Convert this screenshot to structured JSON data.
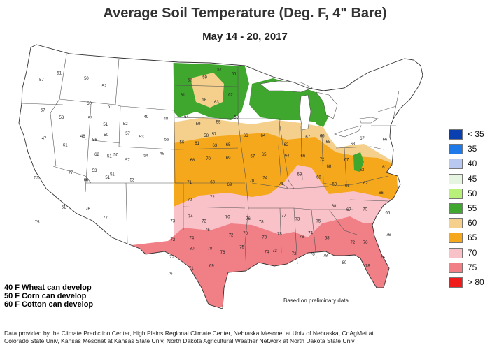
{
  "title": "Average Soil Temperature (Deg. F, 4\" Bare)",
  "subtitle": "May 14 - 20, 2017",
  "legend": {
    "items": [
      {
        "label": "< 35",
        "color": "#0a3fb0"
      },
      {
        "label": "35",
        "color": "#1e7ae8"
      },
      {
        "label": "40",
        "color": "#b8c8f0"
      },
      {
        "label": "45",
        "color": "#e6f5e0"
      },
      {
        "label": "50",
        "color": "#b8f07a"
      },
      {
        "label": "55",
        "color": "#3fa62e"
      },
      {
        "label": "60",
        "color": "#f5d08c"
      },
      {
        "label": "65",
        "color": "#f5a81c"
      },
      {
        "label": "70",
        "color": "#f9c2c8"
      },
      {
        "label": "75",
        "color": "#f07f86"
      },
      {
        "label": "> 80",
        "color": "#f01c1c"
      }
    ]
  },
  "notes": [
    "40 F Wheat can develop",
    "50 F Corn can develop",
    "60 F Cotton can develop"
  ],
  "prelim_note": "Based on preliminary data.",
  "credits": [
    "Data provided by the Climate Prediction Center, High Plains Regional Climate Center, Nebraska Mesonet at Univ of Nebraska, CoAgMet at",
    "Colorado State Univ, Kansas Mesonet at Kansas State Univ, North Dakota Agricultural Weather Network at North Dakota State Univ"
  ],
  "stations": {
    "west": [
      "57",
      "51",
      "50",
      "52",
      "57",
      "53",
      "50",
      "51",
      "47",
      "61",
      "46",
      "50",
      "53",
      "77",
      "66",
      "51",
      "75",
      "51",
      "76",
      "77"
    ],
    "mountain": [
      "53",
      "51",
      "52",
      "49",
      "48",
      "56",
      "50",
      "57",
      "53",
      "56",
      "62",
      "51",
      "57",
      "54",
      "49",
      "53",
      "51",
      "53"
    ],
    "plains": [
      "56",
      "59",
      "57",
      "60",
      "61",
      "58",
      "63",
      "62",
      "64",
      "59",
      "55",
      "59",
      "56",
      "58",
      "57"
    ],
    "midwest": [
      "61",
      "63",
      "65",
      "66",
      "64",
      "62",
      "67",
      "66",
      "68",
      "70",
      "69",
      "67",
      "65",
      "64",
      "66",
      "72",
      "71",
      "68",
      "69",
      "70",
      "74",
      "71",
      "69",
      "68",
      "70",
      "72"
    ],
    "south": [
      "73",
      "74",
      "72",
      "70",
      "76",
      "78",
      "77",
      "73",
      "75",
      "72",
      "74",
      "76",
      "72",
      "70",
      "73",
      "78",
      "76",
      "74",
      "72",
      "80",
      "78",
      "76",
      "75",
      "74",
      "73",
      "72",
      "70",
      "76",
      "71",
      "69"
    ],
    "east": [
      "65",
      "63",
      "67",
      "66",
      "68",
      "67",
      "63",
      "61",
      "60",
      "66",
      "62",
      "66",
      "68",
      "67",
      "70",
      "66",
      "68",
      "72",
      "70",
      "76",
      "78",
      "80",
      "78",
      "75"
    ]
  }
}
